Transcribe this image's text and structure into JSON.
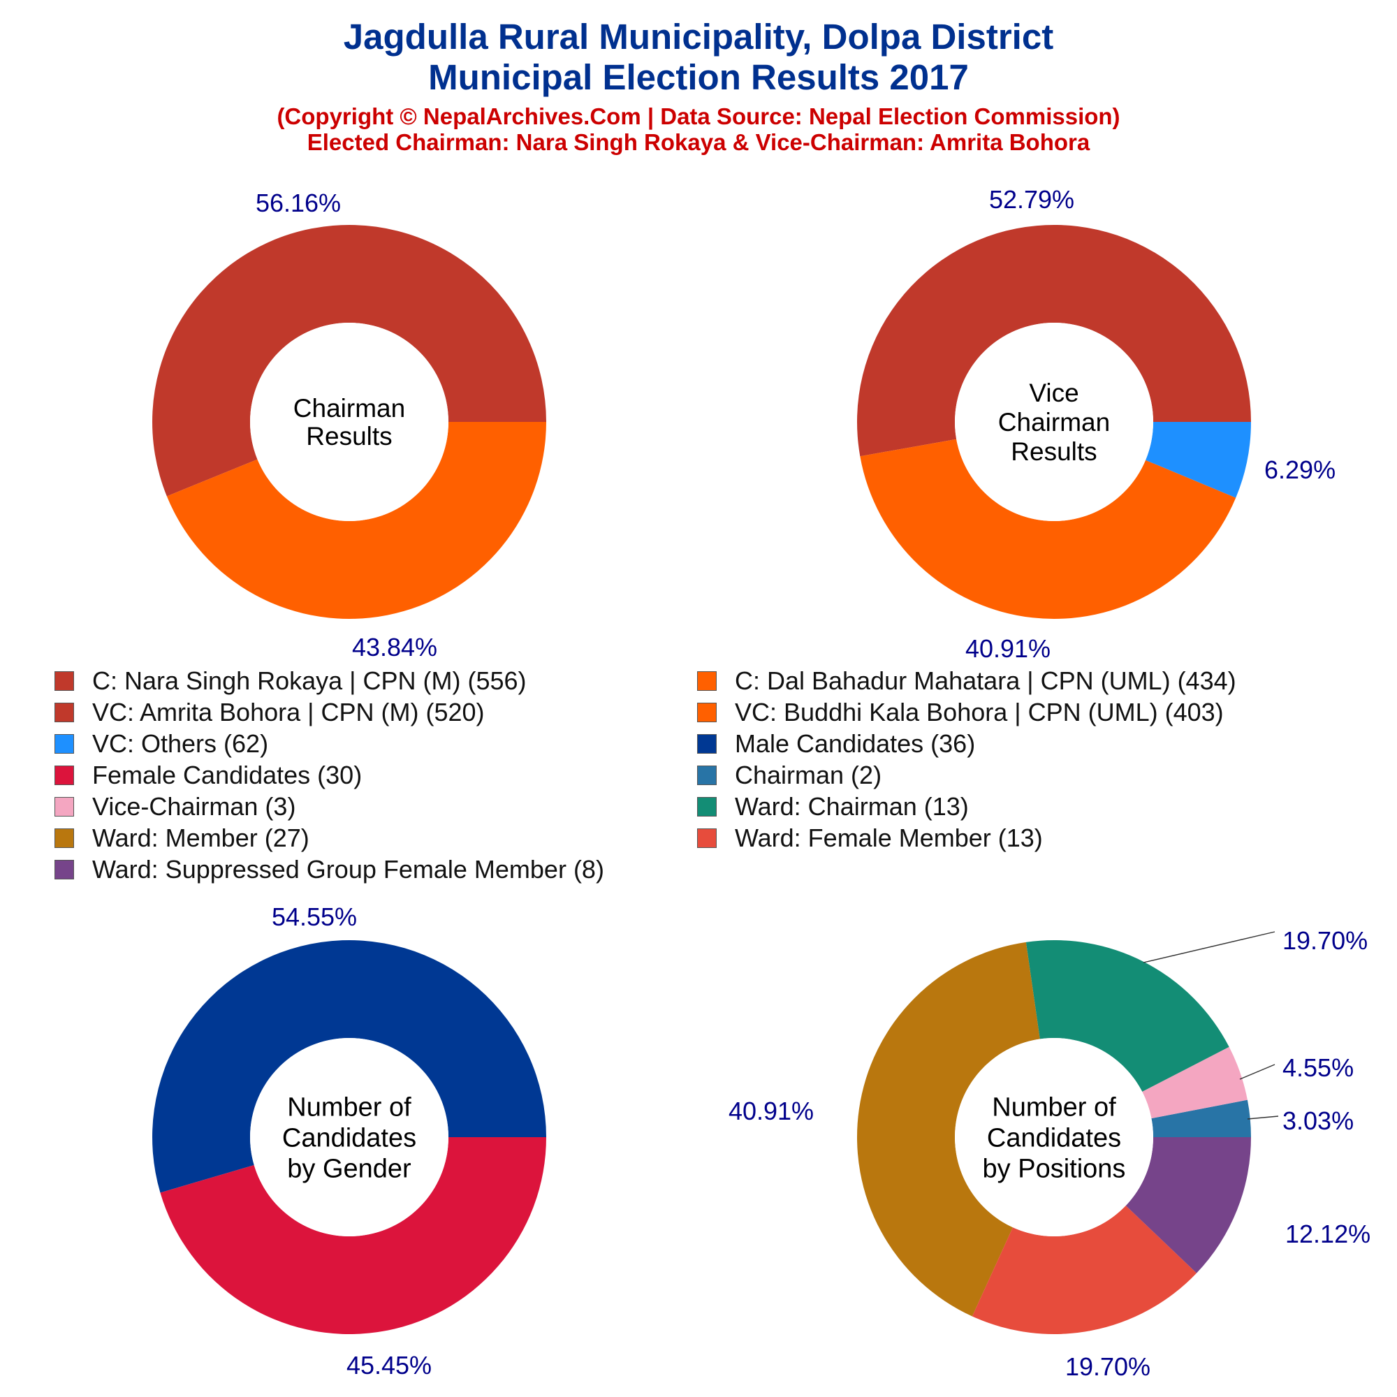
{
  "header": {
    "title_line1": "Jagdulla Rural Municipality, Dolpa District",
    "title_line2": "Municipal Election Results 2017",
    "subtitle_line1": "(Copyright © NepalArchives.Com | Data Source: Nepal Election Commission)",
    "subtitle_line2": "Elected Chairman: Nara Singh Rokaya & Vice-Chairman: Amrita Bohora"
  },
  "colors": {
    "title": "#00308F",
    "subtitle": "#CC0000",
    "percent_label": "#00008B"
  },
  "chart_data": [
    {
      "type": "pie",
      "center_label": [
        "Chairman",
        "Results"
      ],
      "slices": [
        {
          "label": "C: Nara Singh Rokaya | CPN (M)",
          "value": 556,
          "percent": "56.16%",
          "color": "#C0392B"
        },
        {
          "label": "C: Dal Bahadur Mahatara | CPN (UML)",
          "value": 434,
          "percent": "43.84%",
          "color": "#FF6000"
        }
      ]
    },
    {
      "type": "pie",
      "center_label": [
        "Vice",
        "Chairman",
        "Results"
      ],
      "slices": [
        {
          "label": "VC: Amrita Bohora | CPN (M)",
          "value": 520,
          "percent": "52.79%",
          "color": "#C0392B"
        },
        {
          "label": "VC: Buddhi Kala Bohora | CPN (UML)",
          "value": 403,
          "percent": "40.91%",
          "color": "#FF6000"
        },
        {
          "label": "VC: Others",
          "value": 62,
          "percent": "6.29%",
          "color": "#1E90FF"
        }
      ]
    },
    {
      "type": "pie",
      "center_label": [
        "Number of",
        "Candidates",
        "by Gender"
      ],
      "slices": [
        {
          "label": "Male Candidates",
          "value": 36,
          "percent": "54.55%",
          "color": "#003893"
        },
        {
          "label": "Female Candidates",
          "value": 30,
          "percent": "45.45%",
          "color": "#DC143C"
        }
      ]
    },
    {
      "type": "pie",
      "center_label": [
        "Number of",
        "Candidates",
        "by Positions"
      ],
      "slices": [
        {
          "label": "Chairman",
          "value": 2,
          "percent": "3.03%",
          "color": "#2874A6"
        },
        {
          "label": "Vice-Chairman",
          "value": 3,
          "percent": "4.55%",
          "color": "#F4A6C1"
        },
        {
          "label": "Ward: Chairman",
          "value": 13,
          "percent": "19.70%",
          "color": "#138D75"
        },
        {
          "label": "Ward: Member",
          "value": 27,
          "percent": "40.91%",
          "color": "#B9770E"
        },
        {
          "label": "Ward: Female Member",
          "value": 13,
          "percent": "19.70%",
          "color": "#E74C3C"
        },
        {
          "label": "Ward: Suppressed Group Female Member",
          "value": 8,
          "percent": "12.12%",
          "color": "#76448A"
        }
      ]
    }
  ],
  "legend": {
    "rows": [
      [
        {
          "label": "C: Nara Singh Rokaya | CPN (M) (556)",
          "color": "#C0392B"
        },
        {
          "label": "C: Dal Bahadur Mahatara | CPN (UML) (434)",
          "color": "#FF6000"
        }
      ],
      [
        {
          "label": "VC: Amrita Bohora | CPN (M) (520)",
          "color": "#C0392B"
        },
        {
          "label": "VC: Buddhi Kala Bohora | CPN (UML) (403)",
          "color": "#FF6000"
        }
      ],
      [
        {
          "label": "VC: Others (62)",
          "color": "#1E90FF"
        },
        {
          "label": "Male Candidates (36)",
          "color": "#003893"
        }
      ],
      [
        {
          "label": "Female Candidates (30)",
          "color": "#DC143C"
        },
        {
          "label": "Chairman (2)",
          "color": "#2874A6"
        }
      ],
      [
        {
          "label": "Vice-Chairman (3)",
          "color": "#F4A6C1"
        },
        {
          "label": "Ward: Chairman (13)",
          "color": "#138D75"
        }
      ],
      [
        {
          "label": "Ward: Member (27)",
          "color": "#B9770E"
        },
        {
          "label": "Ward: Female Member (13)",
          "color": "#E74C3C"
        }
      ],
      [
        {
          "label": "Ward: Suppressed Group Female Member (8)",
          "color": "#76448A"
        }
      ]
    ]
  }
}
